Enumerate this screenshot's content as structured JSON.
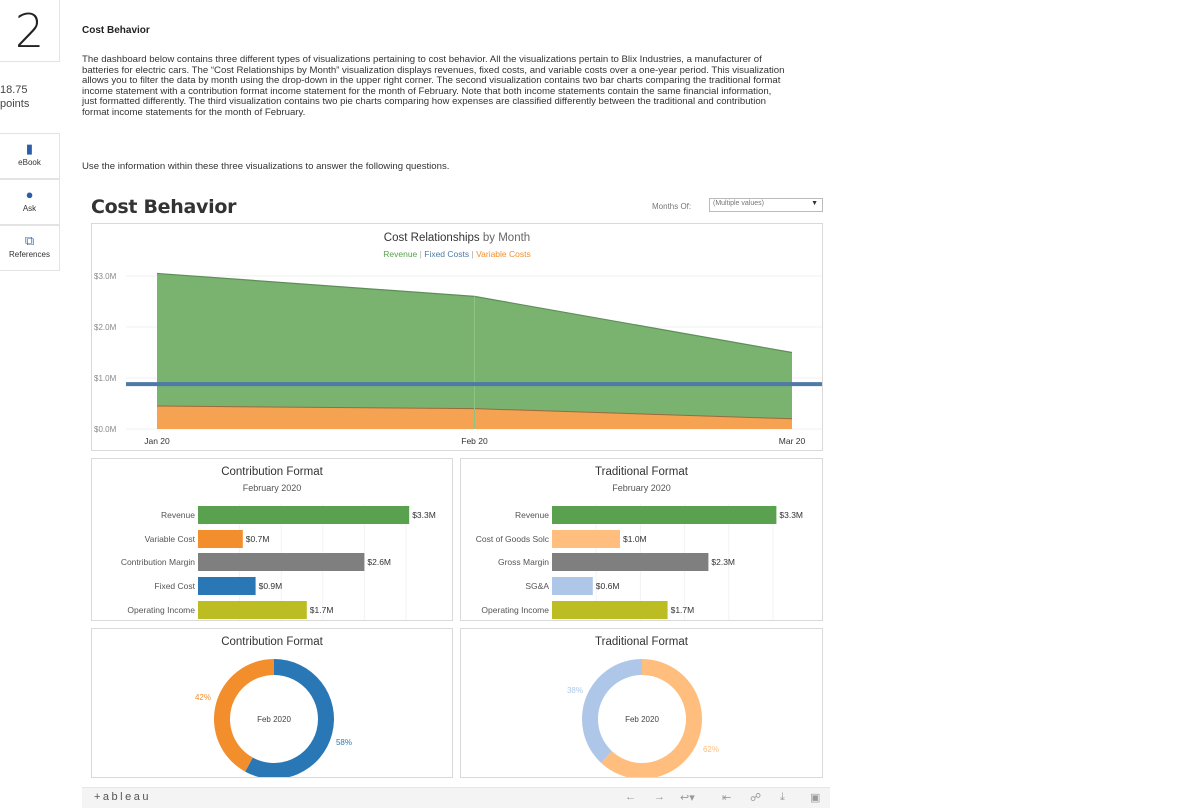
{
  "question": {
    "number": "2",
    "points_value": "18.75",
    "points_label": "points"
  },
  "sidebar": {
    "items": [
      {
        "label": "eBook",
        "icon": "book-icon"
      },
      {
        "label": "Ask",
        "icon": "chat-bubble-icon"
      },
      {
        "label": "References",
        "icon": "copy-pages-icon"
      }
    ]
  },
  "content": {
    "title": "Cost Behavior",
    "description": "The dashboard below contains three different types of visualizations pertaining to cost behavior. All the visualizations pertain to Blix Industries, a manufacturer of batteries for electric cars. The “Cost Relationships by Month” visualization displays revenues, fixed costs, and variable costs over a one-year period. This visualization allows you to filter the data by month using the drop-down in the upper right corner. The second visualization contains two bar charts comparing the traditional format income statement with a contribution format income statement for the month of February. Note that both income statements contain the same financial information, just formatted differently. The third visualization contains two pie charts comparing how expenses are classified differently between the traditional and contribution format income statements for the month of February.",
    "instruction": "Use the information within these three visualizations to answer the following questions."
  },
  "dashboard": {
    "title": "Cost Behavior",
    "filter_label": "Months Of:",
    "filter_value": "(Multiple values)",
    "footer_logo": "+ableau",
    "colors": {
      "revenue": "#59a14f",
      "fixed": "#4e79a7",
      "variable": "#f28e2b",
      "gray": "#7f7f7f",
      "blue": "#1f77b4",
      "olive": "#bcbd22",
      "light_orange": "#ffbe7d",
      "light_blue": "#aec7e8"
    }
  },
  "chart_data": [
    {
      "type": "area",
      "title_main": "Cost Relationships",
      "title_suffix": "by Month",
      "legend": {
        "revenue": "Revenue",
        "sep1": "|",
        "fixed": "Fixed Costs",
        "sep2": "|",
        "variable": "Variable Costs"
      },
      "categories": [
        "Jan 20",
        "Feb 20",
        "Mar 20"
      ],
      "yticks": [
        "$0.0M",
        "$1.0M",
        "$2.0M",
        "$3.0M"
      ],
      "ylim": [
        0,
        3.2
      ],
      "series": [
        {
          "name": "Revenue",
          "values": [
            3.05,
            2.6,
            1.5
          ]
        },
        {
          "name": "Variable Costs",
          "values": [
            0.45,
            0.4,
            0.2
          ]
        },
        {
          "name": "Fixed Costs",
          "values": [
            0.88,
            0.88,
            0.88
          ]
        }
      ]
    },
    {
      "type": "bar",
      "title": "Contribution Format",
      "subtitle": "February 2020",
      "categories": [
        "Revenue",
        "Variable Cost",
        "Contribution Margin",
        "Fixed Cost",
        "Operating Income"
      ],
      "values": [
        3.3,
        0.7,
        2.6,
        0.9,
        1.7
      ],
      "labels": [
        "$3.3M",
        "$0.7M",
        "$2.6M",
        "$0.9M",
        "$1.7M"
      ],
      "colors": [
        "#59a14f",
        "#f28e2b",
        "#7f7f7f",
        "#2a77b5",
        "#bcbd22"
      ]
    },
    {
      "type": "bar",
      "title": "Traditional Format",
      "subtitle": "February 2020",
      "categories": [
        "Revenue",
        "Cost of Goods Solc",
        "Gross Margin",
        "SG&A",
        "Operating Income"
      ],
      "values": [
        3.3,
        1.0,
        2.3,
        0.6,
        1.7
      ],
      "labels": [
        "$3.3M",
        "$1.0M",
        "$2.3M",
        "$0.6M",
        "$1.7M"
      ],
      "colors": [
        "#59a14f",
        "#ffbe7d",
        "#7f7f7f",
        "#aec7e8",
        "#bcbd22"
      ]
    },
    {
      "type": "pie",
      "title": "Contribution Format",
      "center_label": "Feb 2020",
      "values": [
        58,
        42
      ],
      "labels": [
        "58%",
        "42%"
      ],
      "colors": [
        "#2a77b5",
        "#f28e2b"
      ]
    },
    {
      "type": "pie",
      "title": "Traditional Format",
      "center_label": "Feb 2020",
      "values": [
        62,
        38
      ],
      "labels": [
        "62%",
        "38%"
      ],
      "colors": [
        "#ffbe7d",
        "#aec7e8"
      ]
    }
  ]
}
